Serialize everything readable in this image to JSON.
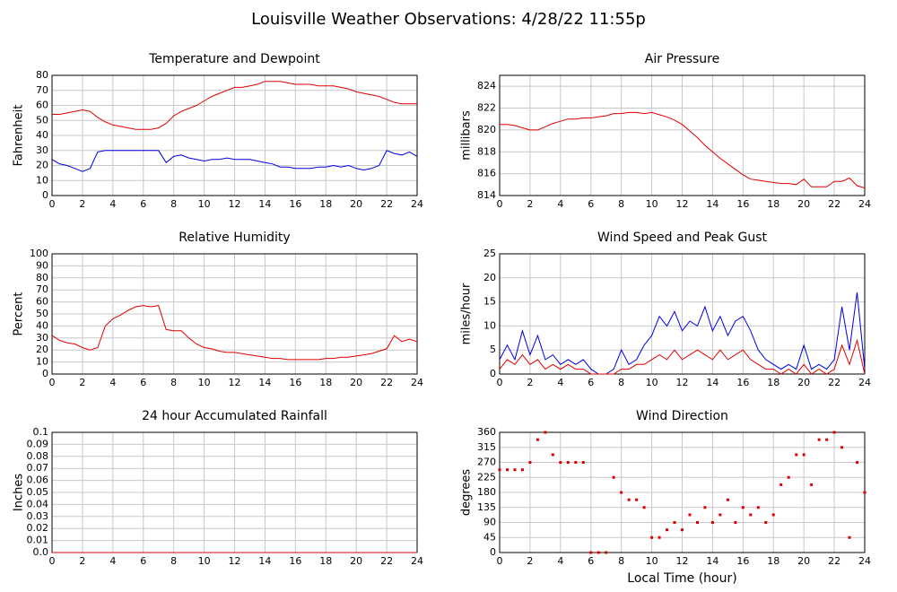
{
  "title": "Louisville Weather Observations: 4/28/22 11:55p",
  "chart_data": [
    {
      "type": "line",
      "title": "Temperature and Dewpoint",
      "ylabel": "Fahrenheit",
      "x": [
        0,
        0.5,
        1,
        1.5,
        2,
        2.5,
        3,
        3.5,
        4,
        4.5,
        5,
        5.5,
        6,
        6.5,
        7,
        7.5,
        8,
        8.5,
        9,
        9.5,
        10,
        10.5,
        11,
        11.5,
        12,
        12.5,
        13,
        13.5,
        14,
        14.5,
        15,
        15.5,
        16,
        16.5,
        17,
        17.5,
        18,
        18.5,
        19,
        19.5,
        20,
        20.5,
        21,
        21.5,
        22,
        22.5,
        23,
        23.5,
        24
      ],
      "series": [
        {
          "color": "#e00000",
          "values": [
            54,
            54,
            55,
            56,
            57,
            56,
            52,
            49,
            47,
            46,
            45,
            44,
            44,
            44,
            45,
            48,
            53,
            56,
            58,
            60,
            63,
            66,
            68,
            70,
            72,
            72,
            73,
            74,
            76,
            76,
            76,
            75,
            74,
            74,
            74,
            73,
            73,
            73,
            72,
            71,
            69,
            68,
            67,
            66,
            64,
            62,
            61,
            61,
            61
          ]
        },
        {
          "color": "#0000e0",
          "values": [
            24,
            21,
            20,
            18,
            16,
            18,
            29,
            30,
            30,
            30,
            30,
            30,
            30,
            30,
            30,
            22,
            26,
            27,
            25,
            24,
            23,
            24,
            24,
            25,
            24,
            24,
            24,
            23,
            22,
            21,
            19,
            19,
            18,
            18,
            18,
            19,
            19,
            20,
            19,
            20,
            18,
            17,
            18,
            20,
            30,
            28,
            27,
            29,
            26
          ]
        }
      ],
      "xlim": [
        0,
        24
      ],
      "xticks": [
        0,
        2,
        4,
        6,
        8,
        10,
        12,
        14,
        16,
        18,
        20,
        22,
        24
      ],
      "ylim": [
        0,
        80
      ],
      "yticks": [
        0,
        10,
        20,
        30,
        40,
        50,
        60,
        70,
        80
      ],
      "grid": true
    },
    {
      "type": "line",
      "title": "Air Pressure",
      "ylabel": "millibars",
      "x": [
        0,
        0.5,
        1,
        1.5,
        2,
        2.5,
        3,
        3.5,
        4,
        4.5,
        5,
        5.5,
        6,
        6.5,
        7,
        7.5,
        8,
        8.5,
        9,
        9.5,
        10,
        10.5,
        11,
        11.5,
        12,
        12.5,
        13,
        13.5,
        14,
        14.5,
        15,
        15.5,
        16,
        16.5,
        17,
        17.5,
        18,
        18.5,
        19,
        19.5,
        20,
        20.5,
        21,
        21.5,
        22,
        22.5,
        23,
        23.5,
        24
      ],
      "series": [
        {
          "color": "#e00000",
          "values": [
            820.5,
            820.5,
            820.4,
            820.2,
            820,
            820,
            820.3,
            820.6,
            820.8,
            821,
            821,
            821.1,
            821.1,
            821.2,
            821.3,
            821.5,
            821.5,
            821.6,
            821.6,
            821.5,
            821.6,
            821.4,
            821.2,
            820.9,
            820.5,
            819.9,
            819.3,
            818.6,
            818,
            817.4,
            816.9,
            816.4,
            815.9,
            815.5,
            815.4,
            815.3,
            815.2,
            815.1,
            815.1,
            815,
            815.5,
            814.8,
            814.8,
            814.8,
            815.3,
            815.3,
            815.6,
            814.9,
            814.7
          ]
        }
      ],
      "xlim": [
        0,
        24
      ],
      "xticks": [
        0,
        2,
        4,
        6,
        8,
        10,
        12,
        14,
        16,
        18,
        20,
        22,
        24
      ],
      "ylim": [
        814,
        825
      ],
      "yticks": [
        814,
        816,
        818,
        820,
        822,
        824
      ],
      "grid": true
    },
    {
      "type": "line",
      "title": "Relative Humidity",
      "ylabel": "Percent",
      "x": [
        0,
        0.5,
        1,
        1.5,
        2,
        2.5,
        3,
        3.5,
        4,
        4.5,
        5,
        5.5,
        6,
        6.5,
        7,
        7.5,
        8,
        8.5,
        9,
        9.5,
        10,
        10.5,
        11,
        11.5,
        12,
        12.5,
        13,
        13.5,
        14,
        14.5,
        15,
        15.5,
        16,
        16.5,
        17,
        17.5,
        18,
        18.5,
        19,
        19.5,
        20,
        20.5,
        21,
        21.5,
        22,
        22.5,
        23,
        23.5,
        24
      ],
      "series": [
        {
          "color": "#e00000",
          "values": [
            32,
            28,
            26,
            25,
            22,
            20,
            22,
            40,
            46,
            49,
            53,
            56,
            57,
            56,
            57,
            37,
            36,
            36,
            30,
            25,
            22,
            21,
            19,
            18,
            18,
            17,
            16,
            15,
            14,
            13,
            13,
            12,
            12,
            12,
            12,
            12,
            13,
            13,
            14,
            14,
            15,
            16,
            17,
            19,
            21,
            32,
            27,
            29,
            27
          ]
        }
      ],
      "xlim": [
        0,
        24
      ],
      "xticks": [
        0,
        2,
        4,
        6,
        8,
        10,
        12,
        14,
        16,
        18,
        20,
        22,
        24
      ],
      "ylim": [
        0,
        100
      ],
      "yticks": [
        0,
        10,
        20,
        30,
        40,
        50,
        60,
        70,
        80,
        90,
        100
      ],
      "grid": true
    },
    {
      "type": "line",
      "title": "Wind Speed and Peak Gust",
      "ylabel": "miles/hour",
      "x": [
        0,
        0.5,
        1,
        1.5,
        2,
        2.5,
        3,
        3.5,
        4,
        4.5,
        5,
        5.5,
        6,
        6.5,
        7,
        7.5,
        8,
        8.5,
        9,
        9.5,
        10,
        10.5,
        11,
        11.5,
        12,
        12.5,
        13,
        13.5,
        14,
        14.5,
        15,
        15.5,
        16,
        16.5,
        17,
        17.5,
        18,
        18.5,
        19,
        19.5,
        20,
        20.5,
        21,
        21.5,
        22,
        22.5,
        23,
        23.5,
        24
      ],
      "series": [
        {
          "color": "#0000e0",
          "values": [
            3,
            6,
            3,
            9,
            4,
            8,
            3,
            4,
            2,
            3,
            2,
            3,
            1,
            0,
            0,
            1,
            5,
            2,
            3,
            6,
            8,
            12,
            10,
            13,
            9,
            11,
            10,
            14,
            9,
            12,
            8,
            11,
            12,
            9,
            5,
            3,
            2,
            1,
            2,
            1,
            6,
            1,
            2,
            1,
            3,
            14,
            5,
            17,
            1
          ]
        },
        {
          "color": "#e00000",
          "values": [
            1,
            3,
            2,
            4,
            2,
            3,
            1,
            2,
            1,
            2,
            1,
            1,
            0,
            0,
            0,
            0,
            1,
            1,
            2,
            2,
            3,
            4,
            3,
            5,
            3,
            4,
            5,
            4,
            3,
            5,
            3,
            4,
            5,
            3,
            2,
            1,
            1,
            0,
            1,
            0,
            2,
            0,
            1,
            0,
            1,
            6,
            2,
            7,
            0
          ]
        }
      ],
      "xlim": [
        0,
        24
      ],
      "xticks": [
        0,
        2,
        4,
        6,
        8,
        10,
        12,
        14,
        16,
        18,
        20,
        22,
        24
      ],
      "ylim": [
        0,
        25
      ],
      "yticks": [
        0,
        5,
        10,
        15,
        20,
        25
      ],
      "grid": true
    },
    {
      "type": "line",
      "title": "24 hour Accumulated Rainfall",
      "ylabel": "Inches",
      "x": [
        0,
        24
      ],
      "series": [
        {
          "color": "#e00000",
          "values": [
            0,
            0
          ]
        }
      ],
      "xlim": [
        0,
        24
      ],
      "xticks": [
        0,
        2,
        4,
        6,
        8,
        10,
        12,
        14,
        16,
        18,
        20,
        22,
        24
      ],
      "ylim": [
        0,
        0.1
      ],
      "yticks": [
        {
          "value": 0,
          "label": "0.0"
        },
        0.01,
        0.02,
        0.03,
        0.04,
        0.05,
        0.06,
        0.07,
        0.08,
        0.09,
        0.1
      ],
      "grid": true
    },
    {
      "type": "scatter",
      "title": "Wind Direction",
      "ylabel": "degrees",
      "xlabel": "Local Time (hour)",
      "x": [
        0,
        0.5,
        1,
        1.5,
        2,
        2.5,
        3,
        3.5,
        4,
        4.5,
        5,
        5.5,
        6,
        6.5,
        7,
        7.5,
        8,
        8.5,
        9,
        9.5,
        10,
        10.5,
        11,
        11.5,
        12,
        12.5,
        13,
        13.5,
        14,
        14.5,
        15,
        15.5,
        16,
        16.5,
        17,
        17.5,
        18,
        18.5,
        19,
        19.5,
        20,
        20.5,
        21,
        21.5,
        22,
        22.5,
        23,
        23.5,
        24
      ],
      "series": [
        {
          "color": "#e00000",
          "values": [
            248,
            248,
            248,
            248,
            270,
            338,
            360,
            293,
            270,
            270,
            270,
            270,
            0,
            0,
            0,
            225,
            180,
            158,
            158,
            135,
            45,
            45,
            68,
            90,
            68,
            113,
            90,
            135,
            90,
            113,
            158,
            90,
            135,
            113,
            135,
            90,
            113,
            203,
            225,
            293,
            293,
            203,
            338,
            338,
            360,
            315,
            45,
            270,
            180
          ]
        }
      ],
      "xlim": [
        0,
        24
      ],
      "xticks": [
        0,
        2,
        4,
        6,
        8,
        10,
        12,
        14,
        16,
        18,
        20,
        22,
        24
      ],
      "ylim": [
        0,
        360
      ],
      "yticks": [
        0,
        45,
        90,
        135,
        180,
        225,
        270,
        315,
        360
      ],
      "grid": true
    }
  ]
}
